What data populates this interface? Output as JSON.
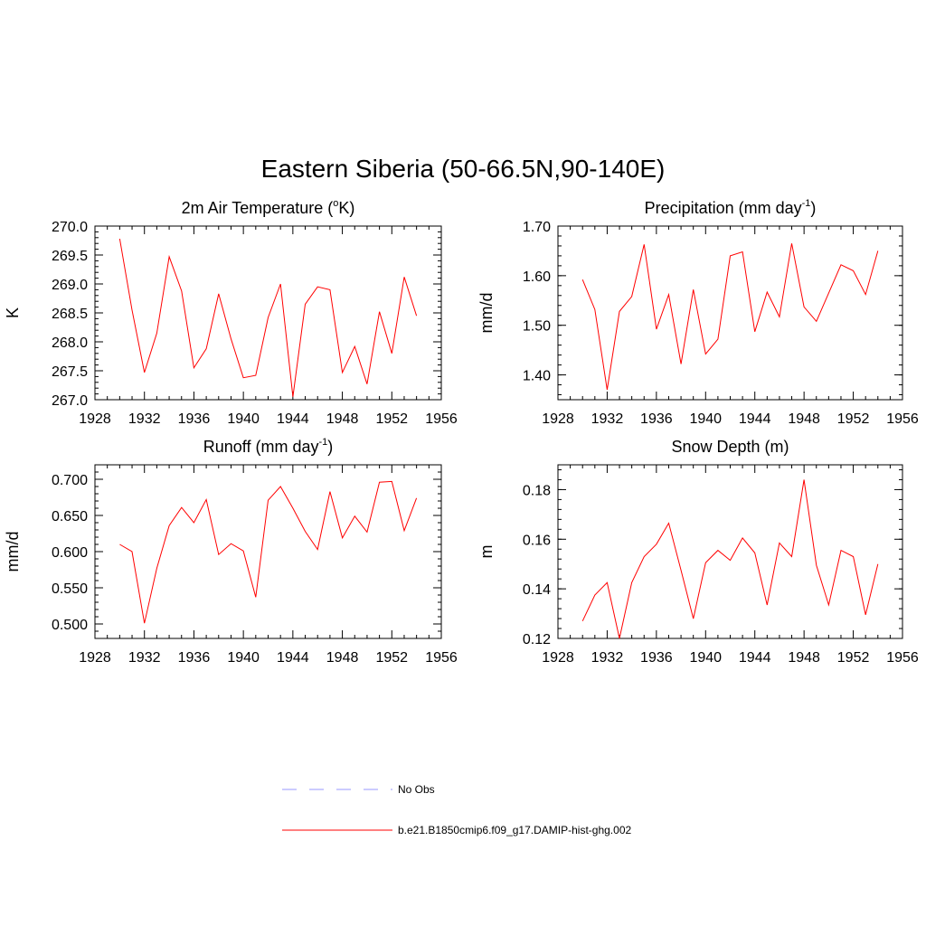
{
  "figure": {
    "title": "Eastern Siberia (50-66.5N,90-140E)"
  },
  "legend": {
    "entries": [
      {
        "label": "No Obs",
        "color": "#9999ff",
        "dashed": true
      },
      {
        "label": "b.e21.B1850cmip6.f09_g17.DAMIP-hist-ghg.002",
        "color": "#ff0000",
        "dashed": false
      }
    ]
  },
  "chart_data": [
    {
      "type": "line",
      "title": "2m Air Temperature (",
      "title_sup": "o",
      "title_after": "K)",
      "ylabel": "K",
      "xlim": [
        1928,
        1956
      ],
      "xticks": [
        "1928",
        "1932",
        "1936",
        "1940",
        "1944",
        "1948",
        "1952",
        "1956"
      ],
      "ylim": [
        267.0,
        270.0
      ],
      "yticks": [
        "267.0",
        "267.5",
        "268.0",
        "268.5",
        "269.0",
        "269.5",
        "270.0"
      ],
      "series": [
        {
          "color": "#ff0000",
          "x": [
            1930,
            1931,
            1932,
            1933,
            1934,
            1935,
            1936,
            1937,
            1938,
            1939,
            1940,
            1941,
            1942,
            1943,
            1944,
            1945,
            1946,
            1947,
            1948,
            1949,
            1950,
            1951,
            1952,
            1953,
            1954
          ],
          "y": [
            269.78,
            268.55,
            267.47,
            268.15,
            269.47,
            268.88,
            267.55,
            267.88,
            268.83,
            268.05,
            267.38,
            267.42,
            268.42,
            269.0,
            267.05,
            268.65,
            268.95,
            268.9,
            267.47,
            267.92,
            267.27,
            268.52,
            267.8,
            269.12,
            268.45
          ]
        }
      ]
    },
    {
      "type": "line",
      "title": "Precipitation (mm day",
      "title_sup": "-1",
      "title_after": ")",
      "ylabel": "mm/d",
      "xlim": [
        1928,
        1956
      ],
      "xticks": [
        "1928",
        "1932",
        "1936",
        "1940",
        "1944",
        "1948",
        "1952",
        "1956"
      ],
      "ylim": [
        1.35,
        1.7
      ],
      "yticks": [
        "1.40",
        "1.50",
        "1.60",
        "1.70"
      ],
      "series": [
        {
          "color": "#ff0000",
          "x": [
            1930,
            1931,
            1932,
            1933,
            1934,
            1935,
            1936,
            1937,
            1938,
            1939,
            1940,
            1941,
            1942,
            1943,
            1944,
            1945,
            1946,
            1947,
            1948,
            1949,
            1950,
            1951,
            1952,
            1953,
            1954
          ],
          "y": [
            1.592,
            1.532,
            1.37,
            1.528,
            1.558,
            1.663,
            1.492,
            1.562,
            1.422,
            1.572,
            1.442,
            1.472,
            1.64,
            1.648,
            1.487,
            1.567,
            1.517,
            1.665,
            1.537,
            1.508,
            1.565,
            1.622,
            1.61,
            1.562,
            1.65
          ]
        }
      ]
    },
    {
      "type": "line",
      "title": "Runoff (mm day",
      "title_sup": "-1",
      "title_after": ")",
      "ylabel": "mm/d",
      "xlim": [
        1928,
        1956
      ],
      "xticks": [
        "1928",
        "1932",
        "1936",
        "1940",
        "1944",
        "1948",
        "1952",
        "1956"
      ],
      "ylim": [
        0.48,
        0.72
      ],
      "yticks": [
        "0.500",
        "0.550",
        "0.600",
        "0.650",
        "0.700"
      ],
      "series": [
        {
          "color": "#ff0000",
          "x": [
            1930,
            1931,
            1932,
            1933,
            1934,
            1935,
            1936,
            1937,
            1938,
            1939,
            1940,
            1941,
            1942,
            1943,
            1944,
            1945,
            1946,
            1947,
            1948,
            1949,
            1950,
            1951,
            1952,
            1953,
            1954
          ],
          "y": [
            0.61,
            0.6,
            0.501,
            0.577,
            0.636,
            0.661,
            0.64,
            0.672,
            0.596,
            0.611,
            0.601,
            0.537,
            0.671,
            0.69,
            0.66,
            0.628,
            0.603,
            0.683,
            0.619,
            0.649,
            0.627,
            0.696,
            0.697,
            0.629,
            0.674
          ]
        }
      ]
    },
    {
      "type": "line",
      "title": "Snow Depth (m)",
      "title_sup": "",
      "title_after": "",
      "ylabel": "m",
      "xlim": [
        1928,
        1956
      ],
      "xticks": [
        "1928",
        "1932",
        "1936",
        "1940",
        "1944",
        "1948",
        "1952",
        "1956"
      ],
      "ylim": [
        0.12,
        0.19
      ],
      "yticks": [
        "0.12",
        "0.14",
        "0.16",
        "0.18"
      ],
      "series": [
        {
          "color": "#ff0000",
          "x": [
            1930,
            1931,
            1932,
            1933,
            1934,
            1935,
            1936,
            1937,
            1938,
            1939,
            1940,
            1941,
            1942,
            1943,
            1944,
            1945,
            1946,
            1947,
            1948,
            1949,
            1950,
            1951,
            1952,
            1953,
            1954
          ],
          "y": [
            0.127,
            0.1375,
            0.1425,
            0.12,
            0.1425,
            0.153,
            0.158,
            0.1665,
            0.1475,
            0.128,
            0.1505,
            0.1555,
            0.1515,
            0.1605,
            0.1545,
            0.1335,
            0.1585,
            0.153,
            0.184,
            0.1495,
            0.1335,
            0.1555,
            0.153,
            0.1295,
            0.15
          ]
        }
      ]
    }
  ]
}
